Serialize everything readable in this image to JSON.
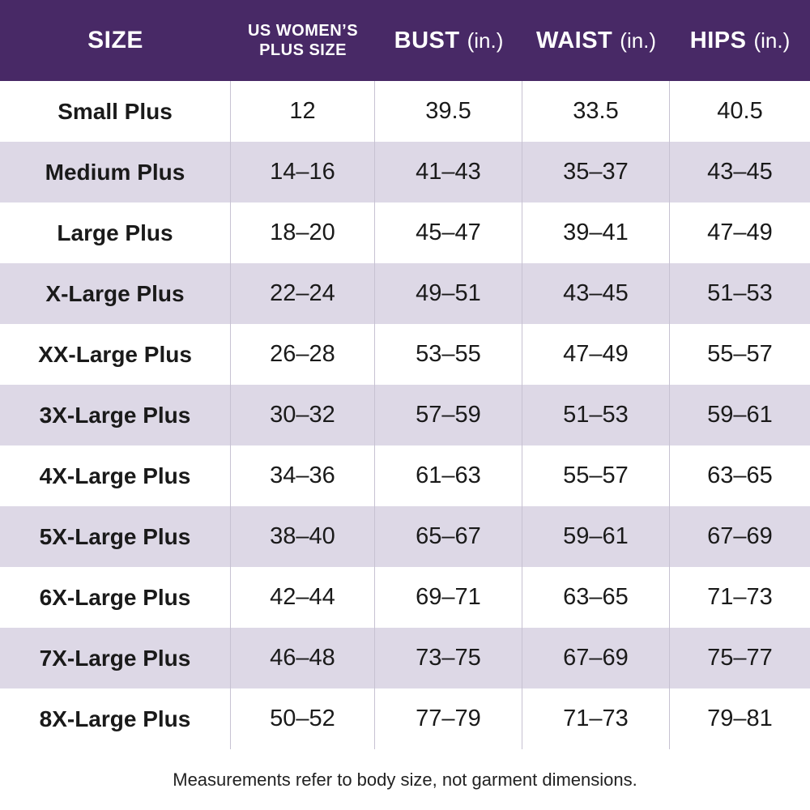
{
  "colors": {
    "header_bg": "#482966",
    "header_text": "#ffffff",
    "row_bg": "#ffffff",
    "row_alt_bg": "#ddd8e6",
    "grid_line": "#c7c2d2",
    "body_text": "#1a1a1a"
  },
  "header": {
    "size_label": "SIZE",
    "plus_size_label_line1": "US WOMEN’S",
    "plus_size_label_line2": "PLUS SIZE",
    "bust_label": "BUST",
    "waist_label": "WAIST",
    "hips_label": "HIPS",
    "unit_label": "(in.)"
  },
  "chart_data": {
    "type": "table",
    "columns": [
      "SIZE",
      "US WOMEN’S PLUS SIZE",
      "BUST (in.)",
      "WAIST (in.)",
      "HIPS (in.)"
    ],
    "rows": [
      {
        "size": "Small Plus",
        "us_womens_plus_size": "12",
        "bust": "39.5",
        "waist": "33.5",
        "hips": "40.5"
      },
      {
        "size": "Medium Plus",
        "us_womens_plus_size": "14–16",
        "bust": "41–43",
        "waist": "35–37",
        "hips": "43–45"
      },
      {
        "size": "Large Plus",
        "us_womens_plus_size": "18–20",
        "bust": "45–47",
        "waist": "39–41",
        "hips": "47–49"
      },
      {
        "size": "X-Large Plus",
        "us_womens_plus_size": "22–24",
        "bust": "49–51",
        "waist": "43–45",
        "hips": "51–53"
      },
      {
        "size": "XX-Large Plus",
        "us_womens_plus_size": "26–28",
        "bust": "53–55",
        "waist": "47–49",
        "hips": "55–57"
      },
      {
        "size": "3X-Large Plus",
        "us_womens_plus_size": "30–32",
        "bust": "57–59",
        "waist": "51–53",
        "hips": "59–61"
      },
      {
        "size": "4X-Large Plus",
        "us_womens_plus_size": "34–36",
        "bust": "61–63",
        "waist": "55–57",
        "hips": "63–65"
      },
      {
        "size": "5X-Large Plus",
        "us_womens_plus_size": "38–40",
        "bust": "65–67",
        "waist": "59–61",
        "hips": "67–69"
      },
      {
        "size": "6X-Large Plus",
        "us_womens_plus_size": "42–44",
        "bust": "69–71",
        "waist": "63–65",
        "hips": "71–73"
      },
      {
        "size": "7X-Large Plus",
        "us_womens_plus_size": "46–48",
        "bust": "73–75",
        "waist": "67–69",
        "hips": "75–77"
      },
      {
        "size": "8X-Large Plus",
        "us_womens_plus_size": "50–52",
        "bust": "77–79",
        "waist": "71–73",
        "hips": "79–81"
      }
    ]
  },
  "footer": {
    "note": "Measurements refer to body size, not garment dimensions."
  }
}
